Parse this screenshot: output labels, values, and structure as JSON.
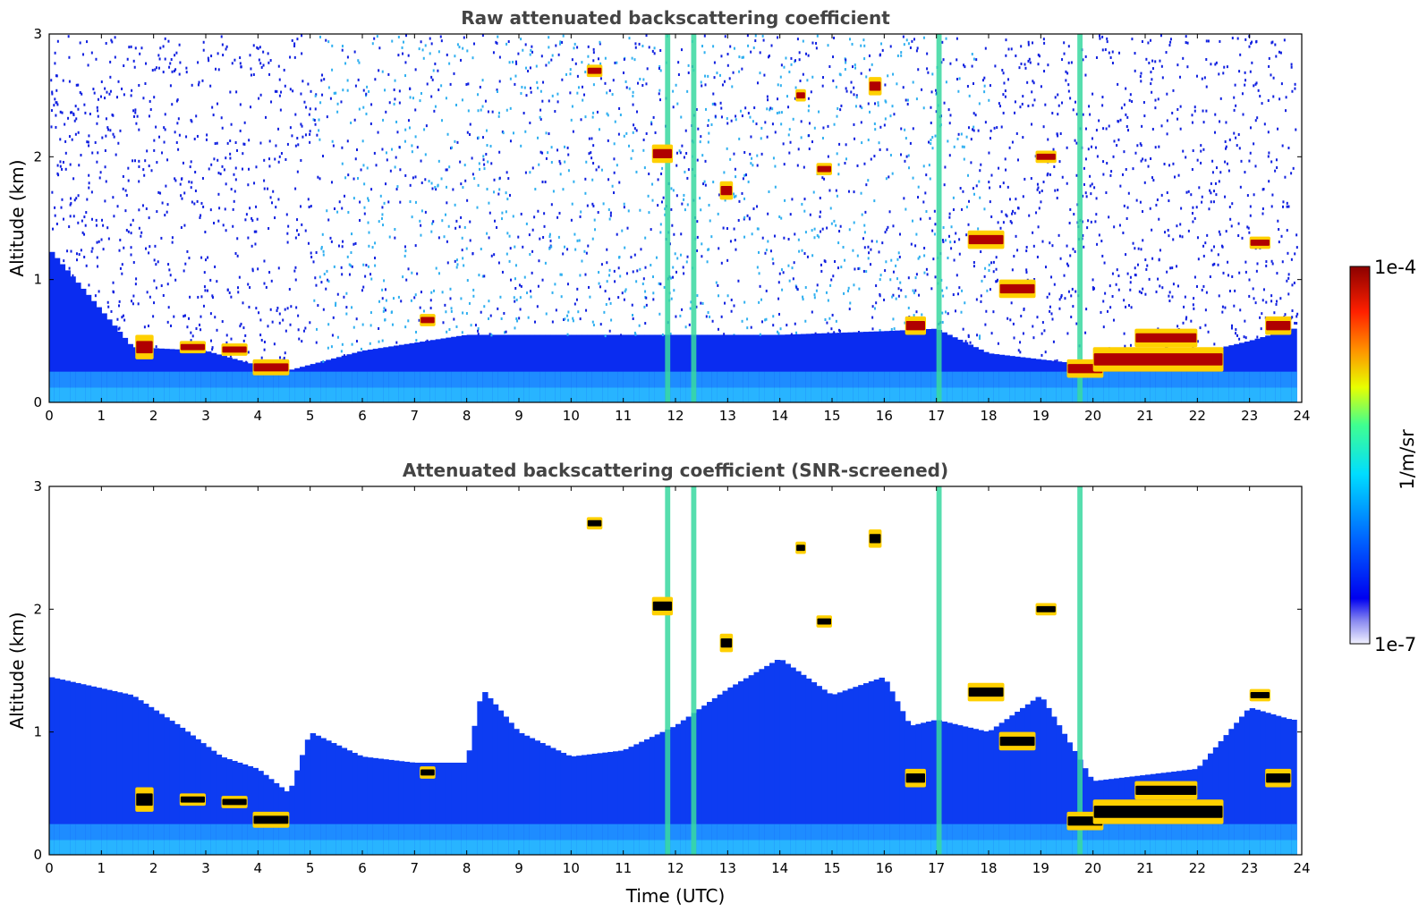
{
  "chart_data": [
    {
      "type": "heatmap",
      "title": "Raw attenuated backscattering coefficient",
      "xlabel": "",
      "ylabel": "Altitude (km)",
      "xlim": [
        0,
        24
      ],
      "ylim": [
        0,
        3
      ],
      "x_ticks": [
        "0",
        "1",
        "2",
        "3",
        "4",
        "5",
        "6",
        "7",
        "8",
        "9",
        "10",
        "11",
        "12",
        "13",
        "14",
        "15",
        "16",
        "17",
        "18",
        "19",
        "20",
        "21",
        "22",
        "23",
        "24"
      ],
      "y_ticks": [
        "0",
        "1",
        "2",
        "3"
      ],
      "boundary_layer_top_km": [
        [
          0,
          1.25
        ],
        [
          1.6,
          0.45
        ],
        [
          3,
          0.42
        ],
        [
          4,
          0.3
        ],
        [
          4.5,
          0.25
        ],
        [
          6,
          0.42
        ],
        [
          8,
          0.55
        ],
        [
          10,
          0.55
        ],
        [
          12,
          0.55
        ],
        [
          14,
          0.55
        ],
        [
          16,
          0.58
        ],
        [
          17,
          0.6
        ],
        [
          18,
          0.4
        ],
        [
          19,
          0.35
        ],
        [
          20,
          0.3
        ],
        [
          22,
          0.4
        ],
        [
          23,
          0.5
        ],
        [
          23.8,
          0.6
        ]
      ],
      "cloud_layers": [
        {
          "t0": 1.65,
          "t1": 2.0,
          "h0": 0.35,
          "h1": 0.55
        },
        {
          "t0": 2.5,
          "t1": 3.0,
          "h0": 0.4,
          "h1": 0.5
        },
        {
          "t0": 3.3,
          "t1": 3.8,
          "h0": 0.38,
          "h1": 0.48
        },
        {
          "t0": 3.9,
          "t1": 4.6,
          "h0": 0.22,
          "h1": 0.35
        },
        {
          "t0": 7.1,
          "t1": 7.4,
          "h0": 0.62,
          "h1": 0.72
        },
        {
          "t0": 10.3,
          "t1": 10.6,
          "h0": 2.65,
          "h1": 2.75
        },
        {
          "t0": 11.55,
          "t1": 11.95,
          "h0": 1.95,
          "h1": 2.1
        },
        {
          "t0": 12.85,
          "t1": 13.1,
          "h0": 1.65,
          "h1": 1.8
        },
        {
          "t0": 14.3,
          "t1": 14.5,
          "h0": 2.45,
          "h1": 2.55
        },
        {
          "t0": 14.7,
          "t1": 15.0,
          "h0": 1.85,
          "h1": 1.95
        },
        {
          "t0": 15.7,
          "t1": 15.95,
          "h0": 2.5,
          "h1": 2.65
        },
        {
          "t0": 16.4,
          "t1": 16.8,
          "h0": 0.55,
          "h1": 0.7
        },
        {
          "t0": 17.6,
          "t1": 18.3,
          "h0": 1.25,
          "h1": 1.4
        },
        {
          "t0": 18.2,
          "t1": 18.9,
          "h0": 0.85,
          "h1": 1.0
        },
        {
          "t0": 18.9,
          "t1": 19.3,
          "h0": 1.95,
          "h1": 2.05
        },
        {
          "t0": 19.5,
          "t1": 20.2,
          "h0": 0.2,
          "h1": 0.35
        },
        {
          "t0": 20.0,
          "t1": 22.5,
          "h0": 0.25,
          "h1": 0.45
        },
        {
          "t0": 20.8,
          "t1": 22.0,
          "h0": 0.45,
          "h1": 0.6
        },
        {
          "t0": 23.0,
          "t1": 23.4,
          "h0": 1.25,
          "h1": 1.35
        },
        {
          "t0": 23.3,
          "t1": 23.8,
          "h0": 0.55,
          "h1": 0.7
        }
      ],
      "precipitation_columns_utc": [
        11.85,
        12.35,
        17.05,
        19.75
      ]
    },
    {
      "type": "heatmap",
      "title": "Attenuated backscattering coefficient (SNR-screened)",
      "xlabel": "Time (UTC)",
      "ylabel": "Altitude (km)",
      "xlim": [
        0,
        24
      ],
      "ylim": [
        0,
        3
      ],
      "x_ticks": [
        "0",
        "1",
        "2",
        "3",
        "4",
        "5",
        "6",
        "7",
        "8",
        "9",
        "10",
        "11",
        "12",
        "13",
        "14",
        "15",
        "16",
        "17",
        "18",
        "19",
        "20",
        "21",
        "22",
        "23",
        "24"
      ],
      "y_ticks": [
        "0",
        "1",
        "2",
        "3"
      ],
      "screened_signal_top_km": [
        [
          0,
          1.45
        ],
        [
          1.6,
          1.3
        ],
        [
          2.5,
          1.05
        ],
        [
          3.3,
          0.8
        ],
        [
          4,
          0.7
        ],
        [
          4.6,
          0.5
        ],
        [
          5,
          1.0
        ],
        [
          6,
          0.8
        ],
        [
          7,
          0.75
        ],
        [
          8,
          0.75
        ],
        [
          8.3,
          1.35
        ],
        [
          9,
          1.0
        ],
        [
          10,
          0.8
        ],
        [
          11,
          0.85
        ],
        [
          12,
          1.05
        ],
        [
          13,
          1.35
        ],
        [
          14,
          1.6
        ],
        [
          15,
          1.3
        ],
        [
          16,
          1.45
        ],
        [
          16.5,
          1.05
        ],
        [
          17,
          1.1
        ],
        [
          18,
          1.0
        ],
        [
          19,
          1.3
        ],
        [
          20,
          0.6
        ],
        [
          21,
          0.65
        ],
        [
          22,
          0.7
        ],
        [
          23,
          1.2
        ],
        [
          23.8,
          1.1
        ]
      ]
    }
  ],
  "colorbar": {
    "label": "1/m/sr",
    "max_label": "1e-4",
    "min_label": "1e-7",
    "colormap": [
      "#f2f2ff",
      "#c4c4f6",
      "#8a8af0",
      "#3f3ff2",
      "#0000f0",
      "#0044ff",
      "#0088ff",
      "#00c8ff",
      "#00ffe0",
      "#40ff90",
      "#9cff40",
      "#e8ff00",
      "#ffc000",
      "#ff7000",
      "#ff2000",
      "#c80000",
      "#8b0000"
    ]
  }
}
